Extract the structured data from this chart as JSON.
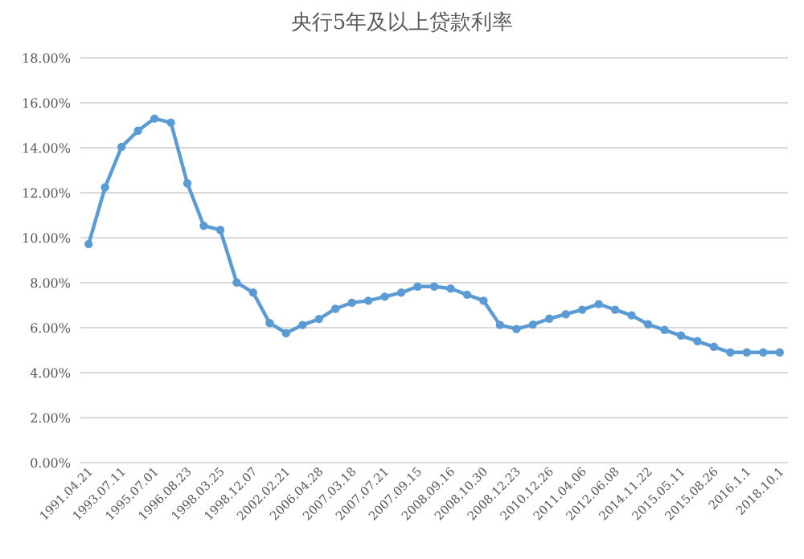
{
  "chart_data": {
    "type": "line",
    "title": "央行5年及以上贷款利率",
    "categories": [
      "1991.04.21",
      null,
      "1993.07.11",
      null,
      "1995.07.01",
      null,
      "1996.08.23",
      null,
      "1998.03.25",
      null,
      "1998.12.07",
      null,
      "2002.02.21",
      null,
      "2006.04.28",
      null,
      "2007.03.18",
      null,
      "2007.07.21",
      null,
      "2007.09.15",
      null,
      "2008.09.16",
      null,
      "2008.10.30",
      null,
      "2008.12.23",
      null,
      "2010.12.26",
      null,
      "2011.04.06",
      null,
      "2012.06.08",
      null,
      "2014.11.22",
      null,
      "2015.05.11",
      null,
      "2015.08.26",
      null,
      "2016.1.1",
      null,
      "2018.10.1"
    ],
    "series": [
      {
        "color": "#5b9bd5",
        "values": [
          9.72,
          12.24,
          14.04,
          14.76,
          15.3,
          15.12,
          12.42,
          10.53,
          10.35,
          8.01,
          7.56,
          6.21,
          5.76,
          6.12,
          6.39,
          6.84,
          7.11,
          7.2,
          7.38,
          7.56,
          7.83,
          7.83,
          7.74,
          7.47,
          7.2,
          6.12,
          5.94,
          6.14,
          6.4,
          6.6,
          6.8,
          7.05,
          6.8,
          6.55,
          6.15,
          5.9,
          5.65,
          5.4,
          5.15,
          4.9,
          4.9,
          4.9,
          4.9
        ]
      }
    ],
    "ylim": [
      0,
      18
    ],
    "yticks": [
      {
        "value": 0,
        "label": "0.00%"
      },
      {
        "value": 2,
        "label": "2.00%"
      },
      {
        "value": 4,
        "label": "4.00%"
      },
      {
        "value": 6,
        "label": "6.00%"
      },
      {
        "value": 8,
        "label": "8.00%"
      },
      {
        "value": 10,
        "label": "10.00%"
      },
      {
        "value": 12,
        "label": "12.00%"
      },
      {
        "value": 14,
        "label": "14.00%"
      },
      {
        "value": 16,
        "label": "16.00%"
      },
      {
        "value": 18,
        "label": "18.00%"
      }
    ],
    "grid": "y",
    "marker": "circle",
    "line_style": "solid"
  }
}
